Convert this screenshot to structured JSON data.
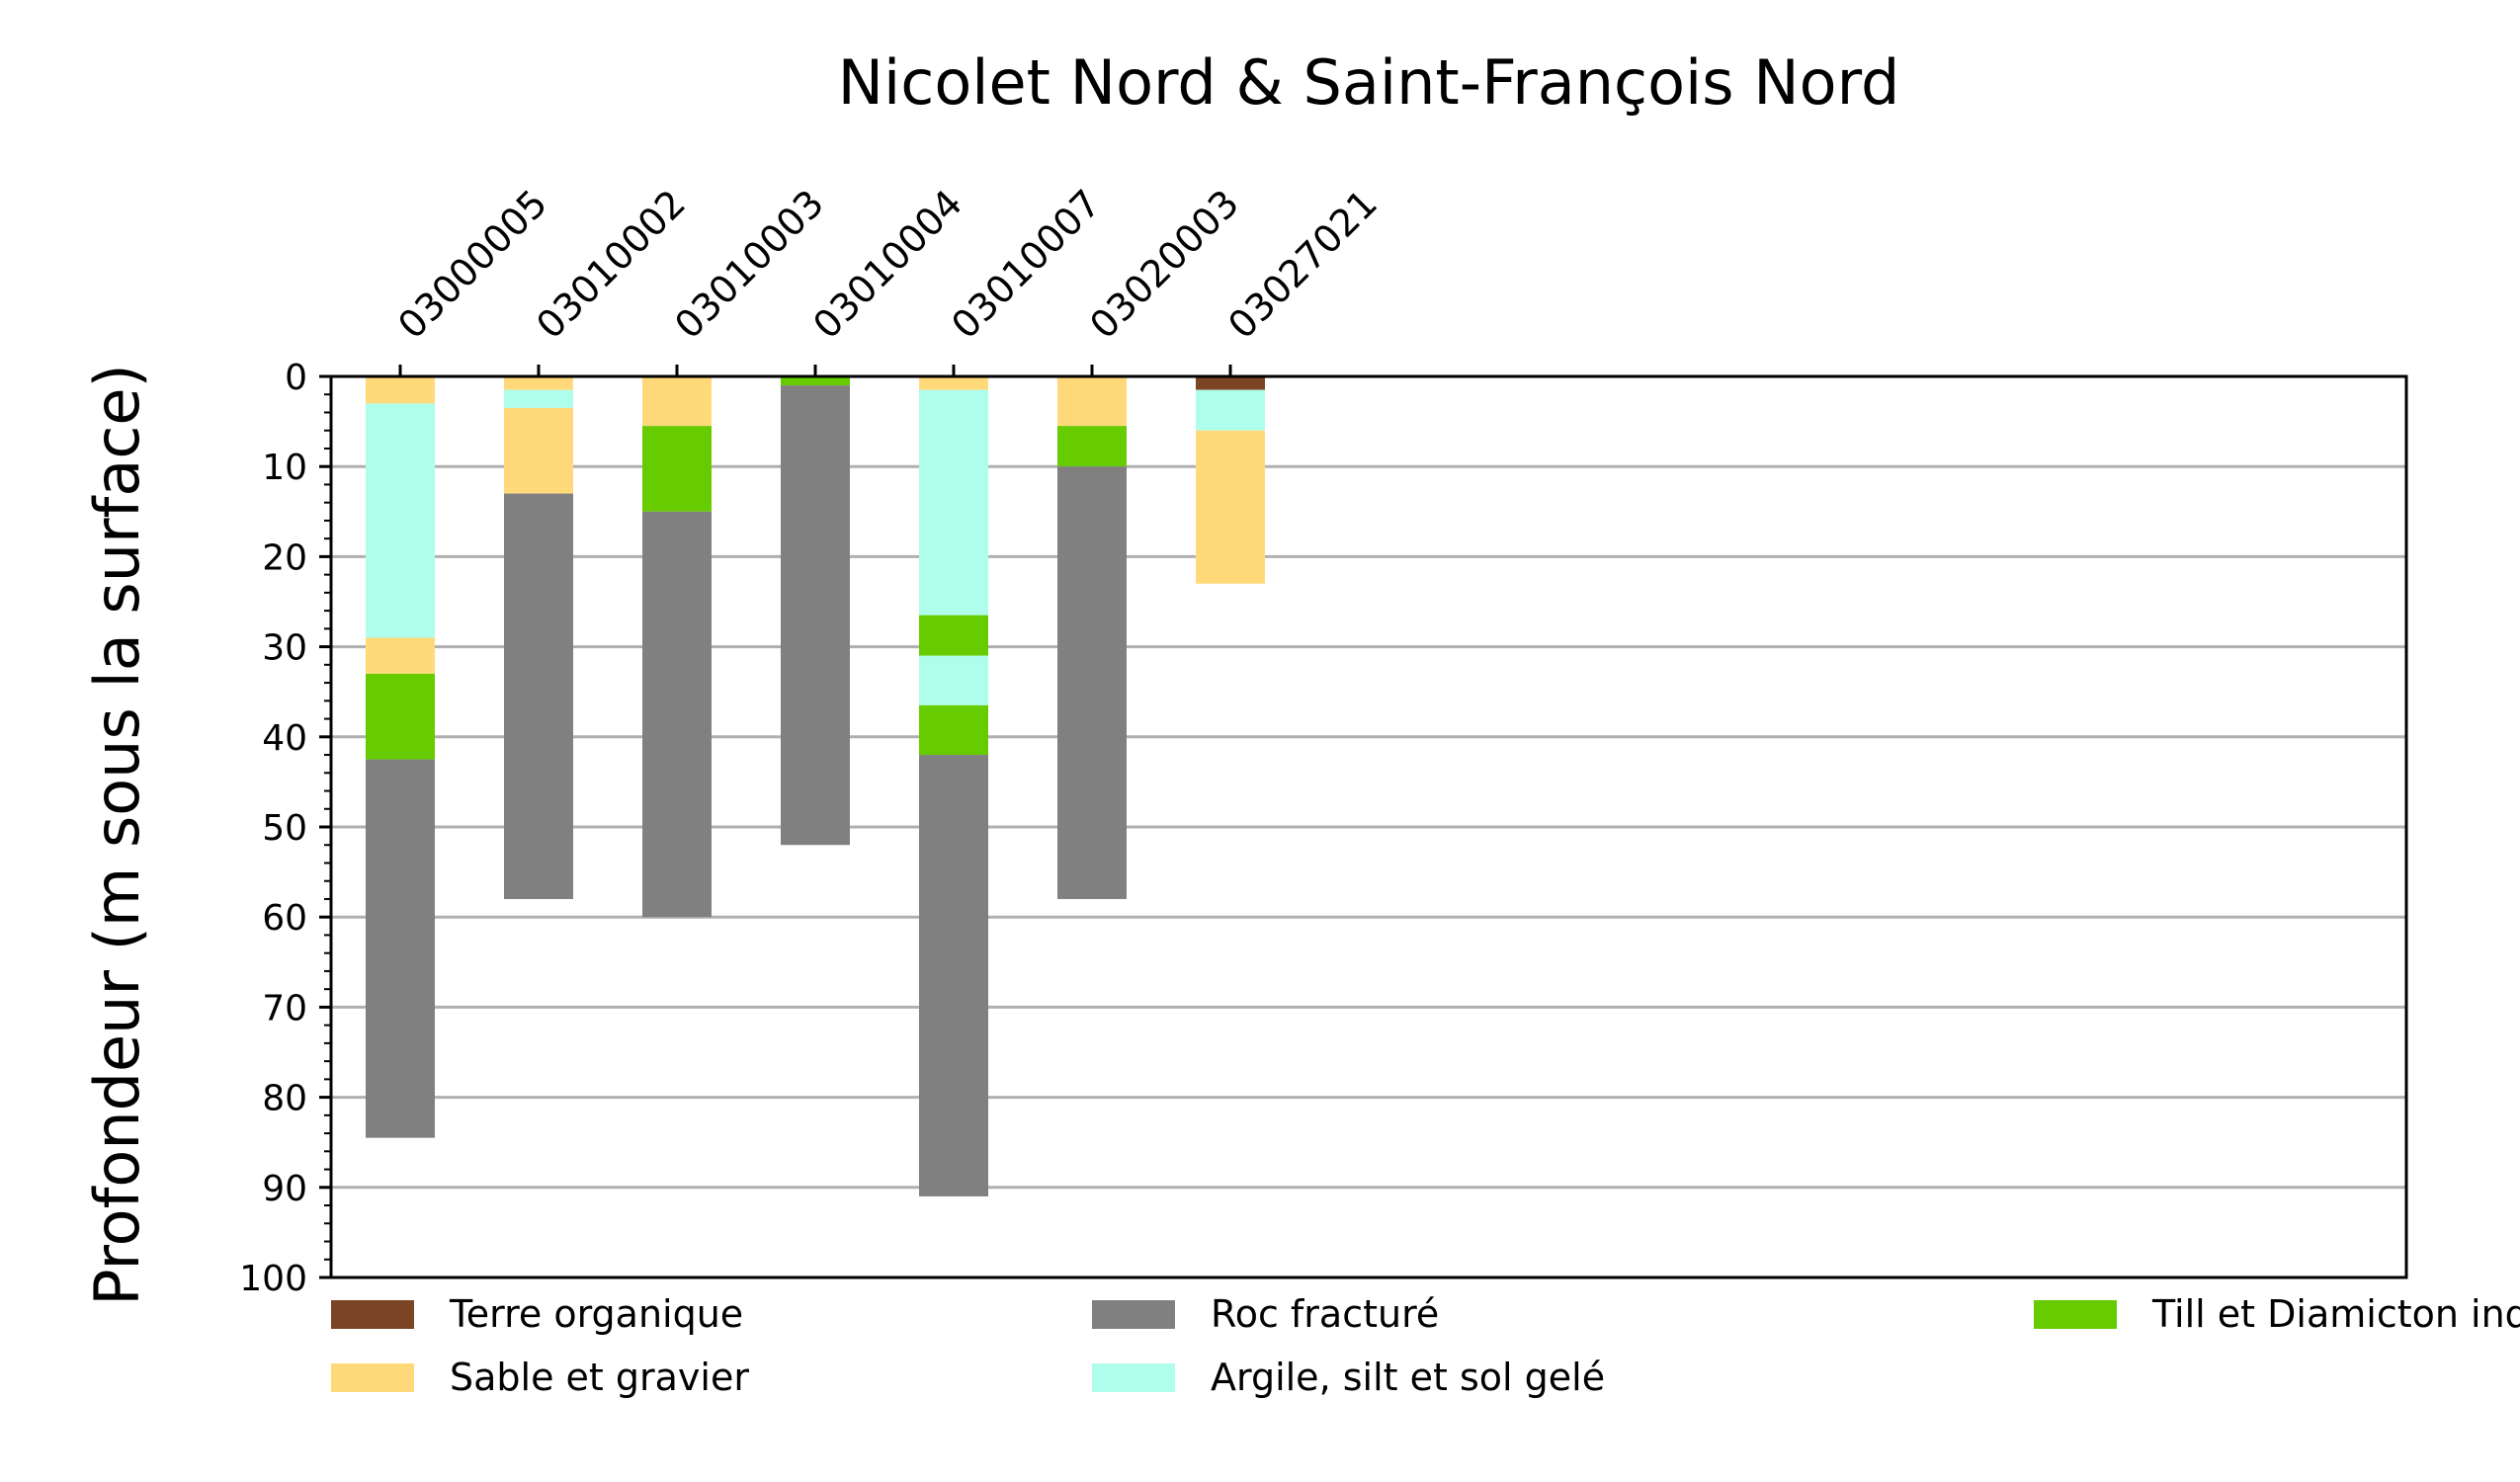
{
  "chart_data": {
    "type": "bar",
    "stacked": true,
    "orientation": "vertical-depth",
    "title": "Nicolet Nord & Saint-François Nord",
    "ylabel": "Profondeur (m sous la surface)",
    "xlabel": "",
    "ylim": [
      0,
      100
    ],
    "y_inverted": true,
    "y_ticks": [
      "0",
      "10",
      "20",
      "30",
      "40",
      "50",
      "60",
      "70",
      "80",
      "90",
      "100"
    ],
    "grid": "horizontal",
    "x_tick_position": "top",
    "categories": [
      "03000005",
      "03010002",
      "03010003",
      "03010004",
      "03010007",
      "03020003",
      "03027021"
    ],
    "legend_placement": "bottom",
    "legend": [
      {
        "label": "Terre organique",
        "color": "#7b4424"
      },
      {
        "label": "Sable et gravier",
        "color": "#ffd97a"
      },
      {
        "label": "Roc fracturé",
        "color": "#808080"
      },
      {
        "label": "Argile, silt et sol gelé",
        "color": "#aefeeb"
      },
      {
        "label": "Till et Diamicton indifférencié",
        "color": "#66cc00"
      }
    ],
    "boreholes": [
      {
        "id": "03000005",
        "layers": [
          {
            "material": "Sable et gravier",
            "top": 0,
            "bottom": 3
          },
          {
            "material": "Argile, silt et sol gelé",
            "top": 3,
            "bottom": 29
          },
          {
            "material": "Sable et gravier",
            "top": 29,
            "bottom": 33
          },
          {
            "material": "Till et Diamicton indifférencié",
            "top": 33,
            "bottom": 42.5
          },
          {
            "material": "Roc fracturé",
            "top": 42.5,
            "bottom": 84.5
          }
        ]
      },
      {
        "id": "03010002",
        "layers": [
          {
            "material": "Sable et gravier",
            "top": 0,
            "bottom": 1.5
          },
          {
            "material": "Argile, silt et sol gelé",
            "top": 1.5,
            "bottom": 3.5
          },
          {
            "material": "Sable et gravier",
            "top": 3.5,
            "bottom": 13
          },
          {
            "material": "Roc fracturé",
            "top": 13,
            "bottom": 58
          }
        ]
      },
      {
        "id": "03010003",
        "layers": [
          {
            "material": "Sable et gravier",
            "top": 0,
            "bottom": 5.5
          },
          {
            "material": "Till et Diamicton indifférencié",
            "top": 5.5,
            "bottom": 15
          },
          {
            "material": "Roc fracturé",
            "top": 15,
            "bottom": 60
          }
        ]
      },
      {
        "id": "03010004",
        "layers": [
          {
            "material": "Till et Diamicton indifférencié",
            "top": 0,
            "bottom": 1
          },
          {
            "material": "Roc fracturé",
            "top": 1,
            "bottom": 52
          }
        ]
      },
      {
        "id": "03010007",
        "layers": [
          {
            "material": "Sable et gravier",
            "top": 0,
            "bottom": 1.5
          },
          {
            "material": "Argile, silt et sol gelé",
            "top": 1.5,
            "bottom": 26.5
          },
          {
            "material": "Till et Diamicton indifférencié",
            "top": 26.5,
            "bottom": 31
          },
          {
            "material": "Argile, silt et sol gelé",
            "top": 31,
            "bottom": 36.5
          },
          {
            "material": "Till et Diamicton indifférencié",
            "top": 36.5,
            "bottom": 42
          },
          {
            "material": "Roc fracturé",
            "top": 42,
            "bottom": 91
          }
        ]
      },
      {
        "id": "03020003",
        "layers": [
          {
            "material": "Sable et gravier",
            "top": 0,
            "bottom": 5.5
          },
          {
            "material": "Till et Diamicton indifférencié",
            "top": 5.5,
            "bottom": 10
          },
          {
            "material": "Roc fracturé",
            "top": 10,
            "bottom": 58
          }
        ]
      },
      {
        "id": "03027021",
        "layers": [
          {
            "material": "Terre organique",
            "top": 0,
            "bottom": 1.5
          },
          {
            "material": "Argile, silt et sol gelé",
            "top": 1.5,
            "bottom": 6
          },
          {
            "material": "Sable et gravier",
            "top": 6,
            "bottom": 23
          }
        ]
      }
    ]
  }
}
